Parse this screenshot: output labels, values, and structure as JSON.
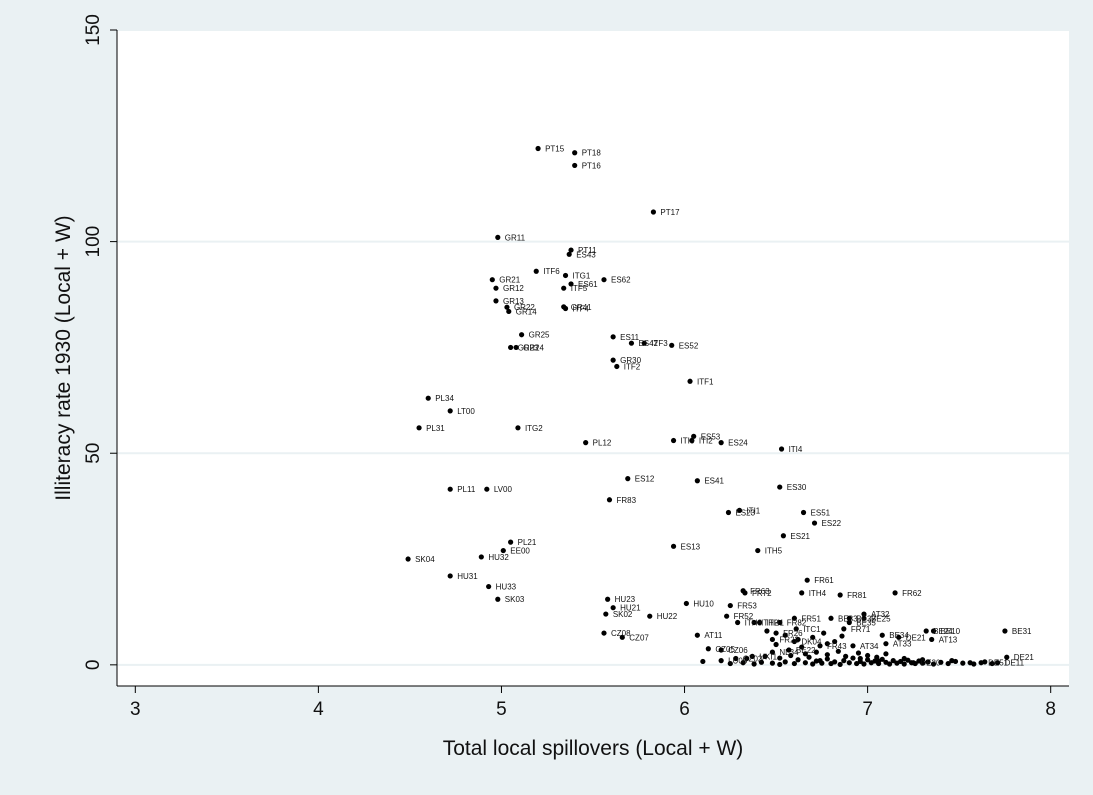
{
  "colors": {
    "frame": "#eaf1f3",
    "plot_bg": "#ffffff",
    "grid": "#eaf1f3",
    "marker": "#000000",
    "axis": "#000000"
  },
  "chart_data": {
    "type": "scatter",
    "title": "",
    "xlabel": "Total local spillovers (Local + W)",
    "ylabel": "Illiteracy rate 1930 (Local + W)",
    "xlim": [
      2.9,
      8.1
    ],
    "ylim": [
      -5,
      150
    ],
    "xticks": [
      3,
      4,
      5,
      6,
      7,
      8
    ],
    "yticks": [
      0,
      50,
      100,
      150
    ],
    "grid": "horizontal",
    "legend": "none",
    "points": [
      {
        "label": "PT15",
        "x": 5.2,
        "y": 122
      },
      {
        "label": "PT18",
        "x": 5.4,
        "y": 121
      },
      {
        "label": "PT16",
        "x": 5.4,
        "y": 118
      },
      {
        "label": "PT17",
        "x": 5.83,
        "y": 107
      },
      {
        "label": "GR11",
        "x": 4.98,
        "y": 101
      },
      {
        "label": "PT11",
        "x": 5.38,
        "y": 98
      },
      {
        "label": "ES43",
        "x": 5.37,
        "y": 97
      },
      {
        "label": "ITF6",
        "x": 5.19,
        "y": 93
      },
      {
        "label": "ITG1",
        "x": 5.35,
        "y": 92
      },
      {
        "label": "ES61",
        "x": 5.38,
        "y": 90
      },
      {
        "label": "ITF5",
        "x": 5.34,
        "y": 89
      },
      {
        "label": "ES62",
        "x": 5.56,
        "y": 91
      },
      {
        "label": "GR21",
        "x": 4.95,
        "y": 91
      },
      {
        "label": "GR12",
        "x": 4.97,
        "y": 89
      },
      {
        "label": "GR13",
        "x": 4.97,
        "y": 86
      },
      {
        "label": "GR22",
        "x": 5.03,
        "y": 84.5
      },
      {
        "label": "GR14",
        "x": 5.04,
        "y": 83.5
      },
      {
        "label": "GR41",
        "x": 5.34,
        "y": 84.6
      },
      {
        "label": "ITF4",
        "x": 5.35,
        "y": 84.2
      },
      {
        "label": "GR25",
        "x": 5.11,
        "y": 78
      },
      {
        "label": "GR23",
        "x": 5.05,
        "y": 75
      },
      {
        "label": "GR24",
        "x": 5.08,
        "y": 75
      },
      {
        "label": "ES11",
        "x": 5.61,
        "y": 77.5
      },
      {
        "label": "ES42",
        "x": 5.71,
        "y": 76
      },
      {
        "label": "ITF3",
        "x": 5.78,
        "y": 76
      },
      {
        "label": "ES52",
        "x": 5.93,
        "y": 75.5
      },
      {
        "label": "GR30",
        "x": 5.61,
        "y": 72
      },
      {
        "label": "ITF2",
        "x": 5.63,
        "y": 70.5
      },
      {
        "label": "ITF1",
        "x": 6.03,
        "y": 67
      },
      {
        "label": "PL34",
        "x": 4.6,
        "y": 63
      },
      {
        "label": "LT00",
        "x": 4.72,
        "y": 60
      },
      {
        "label": "PL31",
        "x": 4.55,
        "y": 56
      },
      {
        "label": "ITG2",
        "x": 5.09,
        "y": 56
      },
      {
        "label": "ITI3",
        "x": 5.94,
        "y": 53
      },
      {
        "label": "ES53",
        "x": 6.05,
        "y": 54
      },
      {
        "label": "ITI2",
        "x": 6.04,
        "y": 53
      },
      {
        "label": "PL12",
        "x": 5.46,
        "y": 52.5
      },
      {
        "label": "ES24",
        "x": 6.2,
        "y": 52.5
      },
      {
        "label": "ITI4",
        "x": 6.53,
        "y": 51
      },
      {
        "label": "ES12",
        "x": 5.69,
        "y": 44
      },
      {
        "label": "ES41",
        "x": 6.07,
        "y": 43.5
      },
      {
        "label": "ES30",
        "x": 6.52,
        "y": 42
      },
      {
        "label": "PL11",
        "x": 4.72,
        "y": 41.5
      },
      {
        "label": "LV00",
        "x": 4.92,
        "y": 41.5
      },
      {
        "label": "FR83",
        "x": 5.59,
        "y": 39
      },
      {
        "label": "ES23",
        "x": 6.24,
        "y": 36
      },
      {
        "label": "ITI1",
        "x": 6.3,
        "y": 36.5
      },
      {
        "label": "ES51",
        "x": 6.65,
        "y": 36
      },
      {
        "label": "ES22",
        "x": 6.71,
        "y": 33.5
      },
      {
        "label": "ES21",
        "x": 6.54,
        "y": 30.5
      },
      {
        "label": "PL21",
        "x": 5.05,
        "y": 29
      },
      {
        "label": "ES13",
        "x": 5.94,
        "y": 28
      },
      {
        "label": "ITH5",
        "x": 6.4,
        "y": 27
      },
      {
        "label": "EE00",
        "x": 5.01,
        "y": 27
      },
      {
        "label": "HU32",
        "x": 4.89,
        "y": 25.5
      },
      {
        "label": "SK04",
        "x": 4.49,
        "y": 25
      },
      {
        "label": "HU31",
        "x": 4.72,
        "y": 21
      },
      {
        "label": "FR61",
        "x": 6.67,
        "y": 20
      },
      {
        "label": "HU33",
        "x": 4.93,
        "y": 18.5
      },
      {
        "label": "FR63",
        "x": 6.32,
        "y": 17.5
      },
      {
        "label": "FR72",
        "x": 6.33,
        "y": 17
      },
      {
        "label": "ITH4",
        "x": 6.64,
        "y": 17
      },
      {
        "label": "FR81",
        "x": 6.85,
        "y": 16.5
      },
      {
        "label": "FR62",
        "x": 7.15,
        "y": 17
      },
      {
        "label": "SK03",
        "x": 4.98,
        "y": 15.5
      },
      {
        "label": "HU23",
        "x": 5.58,
        "y": 15.5
      },
      {
        "label": "HU21",
        "x": 5.61,
        "y": 13.5
      },
      {
        "label": "HU10",
        "x": 6.01,
        "y": 14.5
      },
      {
        "label": "FR53",
        "x": 6.25,
        "y": 14
      },
      {
        "label": "SK02",
        "x": 5.57,
        "y": 12
      },
      {
        "label": "HU22",
        "x": 5.81,
        "y": 11.5
      },
      {
        "label": "FR52",
        "x": 6.23,
        "y": 11.5
      },
      {
        "label": "ITH3",
        "x": 6.29,
        "y": 10
      },
      {
        "label": "ITH1",
        "x": 6.41,
        "y": 10
      },
      {
        "label": "ITC1",
        "x": 6.61,
        "y": 8.5
      },
      {
        "label": "FR71",
        "x": 6.87,
        "y": 8.5
      },
      {
        "label": "ITH2",
        "x": 6.38,
        "y": 10
      },
      {
        "label": "BE32",
        "x": 6.9,
        "y": 11
      },
      {
        "label": "BE25",
        "x": 6.98,
        "y": 11
      },
      {
        "label": "FR82",
        "x": 6.52,
        "y": 10
      },
      {
        "label": "FR51",
        "x": 6.6,
        "y": 11
      },
      {
        "label": "BE33",
        "x": 6.8,
        "y": 11
      },
      {
        "label": "AT32",
        "x": 6.98,
        "y": 12
      },
      {
        "label": "BE35",
        "x": 6.9,
        "y": 10
      },
      {
        "label": "BE34",
        "x": 7.08,
        "y": 7
      },
      {
        "label": "DE21",
        "x": 7.17,
        "y": 6.5
      },
      {
        "label": "AT13",
        "x": 7.35,
        "y": 6
      },
      {
        "label": "BE24",
        "x": 7.32,
        "y": 8
      },
      {
        "label": "BE10",
        "x": 7.36,
        "y": 8
      },
      {
        "label": "BE31",
        "x": 7.75,
        "y": 8
      },
      {
        "label": "AT11",
        "x": 6.07,
        "y": 7
      },
      {
        "label": "CZ08",
        "x": 5.56,
        "y": 7.5
      },
      {
        "label": "CZ07",
        "x": 5.66,
        "y": 6.5
      },
      {
        "label": "FR26",
        "x": 6.5,
        "y": 7.5
      },
      {
        "label": "FR22",
        "x": 6.48,
        "y": 6
      },
      {
        "label": "DK04",
        "x": 6.6,
        "y": 5.5
      },
      {
        "label": "AT33",
        "x": 7.1,
        "y": 5
      },
      {
        "label": "AT34",
        "x": 6.92,
        "y": 4.5
      },
      {
        "label": "FR43",
        "x": 6.74,
        "y": 4.5
      },
      {
        "label": "CZ05",
        "x": 6.13,
        "y": 3.8
      },
      {
        "label": "CZ06",
        "x": 6.2,
        "y": 3.5
      },
      {
        "label": "NL34",
        "x": 6.48,
        "y": 3
      },
      {
        "label": "BE22",
        "x": 6.57,
        "y": 3.5
      },
      {
        "label": "CZ02",
        "x": 6.28,
        "y": 1.5
      },
      {
        "label": "UKI1",
        "x": 6.37,
        "y": 2
      },
      {
        "label": "LU00",
        "x": 6.2,
        "y": 1
      },
      {
        "label": "DE21",
        "x": 7.76,
        "y": 1.8
      },
      {
        "label": "DE11",
        "x": 7.71,
        "y": 0.5
      },
      {
        "label": "DE51",
        "x": 7.62,
        "y": 0.5
      },
      {
        "label": "DE30",
        "x": 7.25,
        "y": 0.5
      }
    ],
    "cluster": [
      [
        6.1,
        0.8
      ],
      [
        6.25,
        0.3
      ],
      [
        6.32,
        0.5
      ],
      [
        6.38,
        0.2
      ],
      [
        6.42,
        0.6
      ],
      [
        6.48,
        0.4
      ],
      [
        6.52,
        0.1
      ],
      [
        6.55,
        0.7
      ],
      [
        6.6,
        0.3
      ],
      [
        6.62,
        1.2
      ],
      [
        6.66,
        0.5
      ],
      [
        6.7,
        0.2
      ],
      [
        6.72,
        0.9
      ],
      [
        6.75,
        0.4
      ],
      [
        6.78,
        1.4
      ],
      [
        6.8,
        0.3
      ],
      [
        6.82,
        0.7
      ],
      [
        6.85,
        0.1
      ],
      [
        6.87,
        1.0
      ],
      [
        6.9,
        0.5
      ],
      [
        6.92,
        1.6
      ],
      [
        6.94,
        0.3
      ],
      [
        6.96,
        0.8
      ],
      [
        6.98,
        0.2
      ],
      [
        7.0,
        1.2
      ],
      [
        7.02,
        0.5
      ],
      [
        7.04,
        0.9
      ],
      [
        7.06,
        0.3
      ],
      [
        7.08,
        1.3
      ],
      [
        7.1,
        0.6
      ],
      [
        7.12,
        0.2
      ],
      [
        7.14,
        1.0
      ],
      [
        7.16,
        0.4
      ],
      [
        7.18,
        0.8
      ],
      [
        7.2,
        0.2
      ],
      [
        7.22,
        1.1
      ],
      [
        7.24,
        0.5
      ],
      [
        7.26,
        0.3
      ],
      [
        7.28,
        0.9
      ],
      [
        7.3,
        0.4
      ],
      [
        7.33,
        0.7
      ],
      [
        7.36,
        0.2
      ],
      [
        7.4,
        0.6
      ],
      [
        7.44,
        0.3
      ],
      [
        7.48,
        0.8
      ],
      [
        7.52,
        0.4
      ],
      [
        7.56,
        0.5
      ],
      [
        7.58,
        0.2
      ],
      [
        7.64,
        0.7
      ],
      [
        7.68,
        0.3
      ],
      [
        6.58,
        2.2
      ],
      [
        6.66,
        2.6
      ],
      [
        6.72,
        3.0
      ],
      [
        6.78,
        2.4
      ],
      [
        6.84,
        3.2
      ],
      [
        6.88,
        2.0
      ],
      [
        6.95,
        2.8
      ],
      [
        7.0,
        2.2
      ],
      [
        7.05,
        1.8
      ],
      [
        7.1,
        2.6
      ],
      [
        6.45,
        8.0
      ],
      [
        6.55,
        7.0
      ],
      [
        6.62,
        6.0
      ],
      [
        6.7,
        6.5
      ],
      [
        6.76,
        7.5
      ],
      [
        6.82,
        5.5
      ],
      [
        6.86,
        6.8
      ],
      [
        6.5,
        4.8
      ],
      [
        6.64,
        4.2
      ],
      [
        6.78,
        5.0
      ],
      [
        6.34,
        1.5
      ],
      [
        6.44,
        2.0
      ],
      [
        6.52,
        1.6
      ],
      [
        6.68,
        1.8
      ],
      [
        6.74,
        1.0
      ],
      [
        6.96,
        1.5
      ],
      [
        7.06,
        0.9
      ],
      [
        7.2,
        1.5
      ],
      [
        7.3,
        1.2
      ],
      [
        7.46,
        1.0
      ]
    ]
  }
}
